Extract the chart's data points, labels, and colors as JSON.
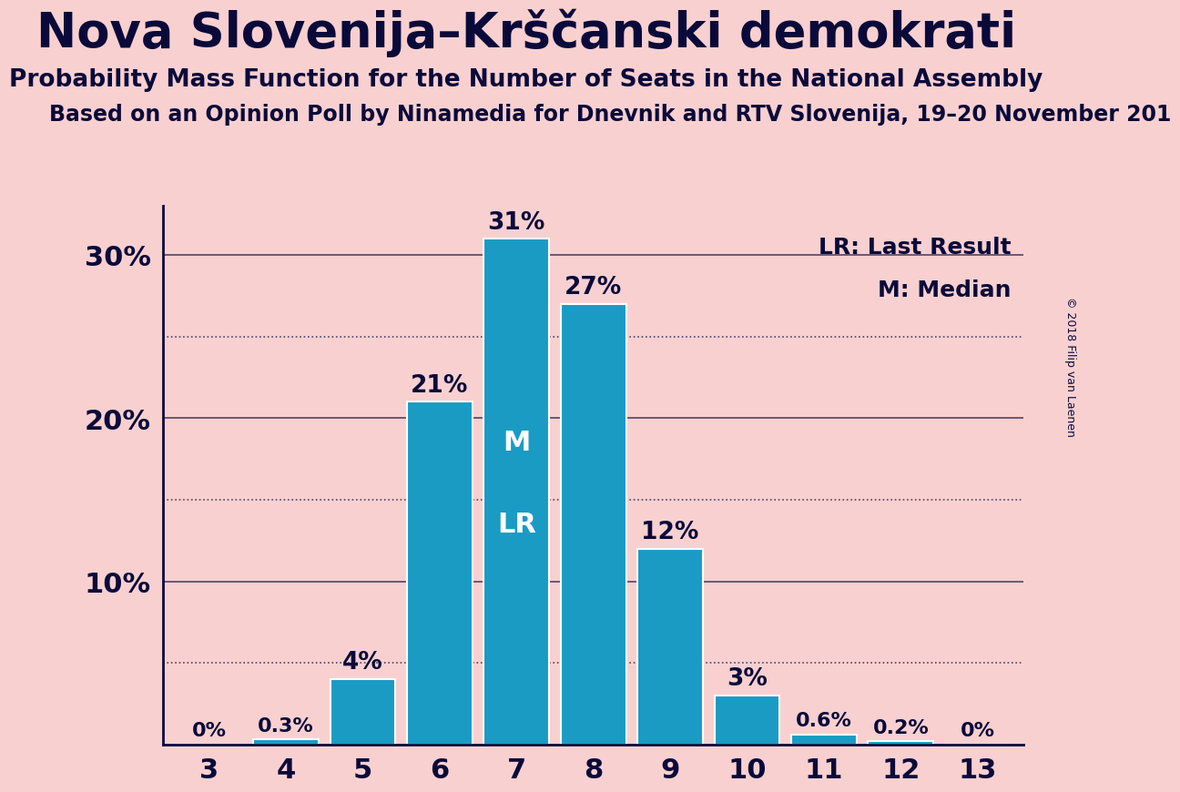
{
  "title": "Nova Slovenija–Krščanski demokrati",
  "subtitle": "Probability Mass Function for the Number of Seats in the National Assembly",
  "subtitle2": "Based on an Opinion Poll by Ninamedia for Dnevnik and RTV Slovenija, 19–20 November 201",
  "copyright": "© 2018 Filip van Laenen",
  "categories": [
    3,
    4,
    5,
    6,
    7,
    8,
    9,
    10,
    11,
    12,
    13
  ],
  "values": [
    0.0,
    0.3,
    4.0,
    21.0,
    31.0,
    27.0,
    12.0,
    3.0,
    0.6,
    0.2,
    0.0
  ],
  "labels": [
    "0%",
    "0.3%",
    "4%",
    "21%",
    "31%",
    "27%",
    "12%",
    "3%",
    "0.6%",
    "0.2%",
    "0%"
  ],
  "bar_color": "#1a9bc4",
  "background_color": "#f9d0d0",
  "bar_edge_color": "white",
  "text_color": "#0a0a3a",
  "median_bar": 7,
  "lr_bar": 7,
  "ylim": [
    0,
    33
  ],
  "solid_lines": [
    10,
    20,
    30
  ],
  "dotted_lines": [
    5,
    15,
    25
  ],
  "ytick_positions": [
    10,
    20,
    30
  ],
  "ytick_labels": [
    "10%",
    "20%",
    "30%"
  ],
  "legend_lr": "LR: Last Result",
  "legend_m": "M: Median",
  "title_fontsize": 38,
  "subtitle_fontsize": 19,
  "subtitle2_fontsize": 17,
  "label_fontsize_large": 19,
  "label_fontsize_small": 16,
  "ml_fontsize": 22
}
